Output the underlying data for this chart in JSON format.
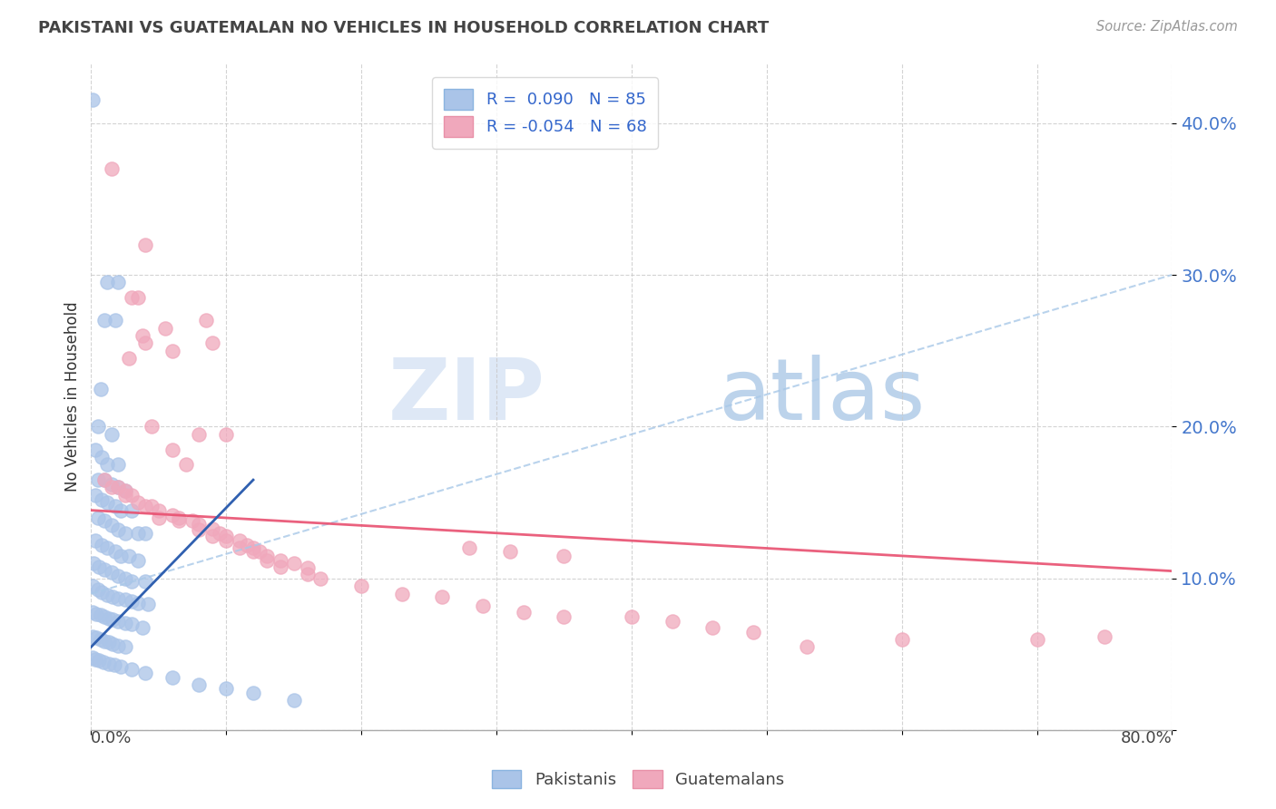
{
  "title": "PAKISTANI VS GUATEMALAN NO VEHICLES IN HOUSEHOLD CORRELATION CHART",
  "source": "Source: ZipAtlas.com",
  "ylabel": "No Vehicles in Household",
  "yticks": [
    0.0,
    0.1,
    0.2,
    0.3,
    0.4
  ],
  "ytick_labels": [
    "",
    "10.0%",
    "20.0%",
    "30.0%",
    "40.0%"
  ],
  "xlim": [
    0.0,
    0.8
  ],
  "ylim": [
    0.0,
    0.44
  ],
  "legend_pakistani_R": "0.090",
  "legend_pakistani_N": "85",
  "legend_guatemalan_R": "-0.054",
  "legend_guatemalan_N": "68",
  "pakistani_color": "#aac4e8",
  "guatemalan_color": "#f0a8bc",
  "pakistani_trend_color": "#3060b0",
  "pakistani_trend_dash_color": "#a8c8e8",
  "guatemalan_trend_color": "#e85070",
  "watermark_zip": "ZIP",
  "watermark_atlas": "atlas",
  "background_color": "#ffffff",
  "pakistani_points": [
    [
      0.001,
      0.415
    ],
    [
      0.012,
      0.295
    ],
    [
      0.02,
      0.295
    ],
    [
      0.01,
      0.27
    ],
    [
      0.018,
      0.27
    ],
    [
      0.007,
      0.225
    ],
    [
      0.005,
      0.2
    ],
    [
      0.015,
      0.195
    ],
    [
      0.003,
      0.185
    ],
    [
      0.008,
      0.18
    ],
    [
      0.012,
      0.175
    ],
    [
      0.02,
      0.175
    ],
    [
      0.005,
      0.165
    ],
    [
      0.01,
      0.165
    ],
    [
      0.015,
      0.162
    ],
    [
      0.02,
      0.16
    ],
    [
      0.025,
      0.158
    ],
    [
      0.003,
      0.155
    ],
    [
      0.008,
      0.152
    ],
    [
      0.012,
      0.15
    ],
    [
      0.018,
      0.148
    ],
    [
      0.022,
      0.145
    ],
    [
      0.03,
      0.145
    ],
    [
      0.005,
      0.14
    ],
    [
      0.01,
      0.138
    ],
    [
      0.015,
      0.135
    ],
    [
      0.02,
      0.132
    ],
    [
      0.025,
      0.13
    ],
    [
      0.035,
      0.13
    ],
    [
      0.04,
      0.13
    ],
    [
      0.003,
      0.125
    ],
    [
      0.008,
      0.122
    ],
    [
      0.012,
      0.12
    ],
    [
      0.018,
      0.118
    ],
    [
      0.022,
      0.115
    ],
    [
      0.028,
      0.115
    ],
    [
      0.035,
      0.112
    ],
    [
      0.002,
      0.11
    ],
    [
      0.006,
      0.108
    ],
    [
      0.01,
      0.106
    ],
    [
      0.015,
      0.104
    ],
    [
      0.02,
      0.102
    ],
    [
      0.025,
      0.1
    ],
    [
      0.03,
      0.098
    ],
    [
      0.04,
      0.098
    ],
    [
      0.001,
      0.095
    ],
    [
      0.005,
      0.093
    ],
    [
      0.008,
      0.091
    ],
    [
      0.012,
      0.089
    ],
    [
      0.016,
      0.088
    ],
    [
      0.02,
      0.087
    ],
    [
      0.025,
      0.086
    ],
    [
      0.03,
      0.085
    ],
    [
      0.035,
      0.084
    ],
    [
      0.042,
      0.083
    ],
    [
      0.001,
      0.078
    ],
    [
      0.004,
      0.077
    ],
    [
      0.007,
      0.076
    ],
    [
      0.01,
      0.075
    ],
    [
      0.013,
      0.074
    ],
    [
      0.016,
      0.073
    ],
    [
      0.02,
      0.072
    ],
    [
      0.025,
      0.071
    ],
    [
      0.03,
      0.07
    ],
    [
      0.038,
      0.068
    ],
    [
      0.001,
      0.062
    ],
    [
      0.004,
      0.061
    ],
    [
      0.007,
      0.06
    ],
    [
      0.01,
      0.059
    ],
    [
      0.013,
      0.058
    ],
    [
      0.016,
      0.057
    ],
    [
      0.02,
      0.056
    ],
    [
      0.025,
      0.055
    ],
    [
      0.001,
      0.048
    ],
    [
      0.003,
      0.047
    ],
    [
      0.006,
      0.046
    ],
    [
      0.009,
      0.045
    ],
    [
      0.013,
      0.044
    ],
    [
      0.017,
      0.043
    ],
    [
      0.022,
      0.042
    ],
    [
      0.03,
      0.04
    ],
    [
      0.04,
      0.038
    ],
    [
      0.06,
      0.035
    ],
    [
      0.08,
      0.03
    ],
    [
      0.1,
      0.028
    ],
    [
      0.12,
      0.025
    ],
    [
      0.15,
      0.02
    ]
  ],
  "guatemalan_points": [
    [
      0.015,
      0.37
    ],
    [
      0.04,
      0.32
    ],
    [
      0.03,
      0.285
    ],
    [
      0.035,
      0.285
    ],
    [
      0.038,
      0.26
    ],
    [
      0.04,
      0.255
    ],
    [
      0.028,
      0.245
    ],
    [
      0.055,
      0.265
    ],
    [
      0.06,
      0.25
    ],
    [
      0.085,
      0.27
    ],
    [
      0.09,
      0.255
    ],
    [
      0.045,
      0.2
    ],
    [
      0.06,
      0.185
    ],
    [
      0.08,
      0.195
    ],
    [
      0.1,
      0.195
    ],
    [
      0.07,
      0.175
    ],
    [
      0.01,
      0.165
    ],
    [
      0.02,
      0.16
    ],
    [
      0.025,
      0.158
    ],
    [
      0.03,
      0.155
    ],
    [
      0.035,
      0.15
    ],
    [
      0.045,
      0.148
    ],
    [
      0.05,
      0.145
    ],
    [
      0.06,
      0.142
    ],
    [
      0.065,
      0.14
    ],
    [
      0.075,
      0.138
    ],
    [
      0.08,
      0.136
    ],
    [
      0.09,
      0.133
    ],
    [
      0.095,
      0.13
    ],
    [
      0.1,
      0.128
    ],
    [
      0.11,
      0.125
    ],
    [
      0.115,
      0.122
    ],
    [
      0.12,
      0.12
    ],
    [
      0.125,
      0.118
    ],
    [
      0.13,
      0.115
    ],
    [
      0.14,
      0.112
    ],
    [
      0.15,
      0.11
    ],
    [
      0.16,
      0.107
    ],
    [
      0.015,
      0.16
    ],
    [
      0.025,
      0.155
    ],
    [
      0.04,
      0.148
    ],
    [
      0.05,
      0.14
    ],
    [
      0.065,
      0.138
    ],
    [
      0.08,
      0.132
    ],
    [
      0.09,
      0.128
    ],
    [
      0.1,
      0.125
    ],
    [
      0.11,
      0.12
    ],
    [
      0.12,
      0.118
    ],
    [
      0.13,
      0.112
    ],
    [
      0.14,
      0.108
    ],
    [
      0.16,
      0.103
    ],
    [
      0.17,
      0.1
    ],
    [
      0.2,
      0.095
    ],
    [
      0.23,
      0.09
    ],
    [
      0.26,
      0.088
    ],
    [
      0.29,
      0.082
    ],
    [
      0.32,
      0.078
    ],
    [
      0.35,
      0.075
    ],
    [
      0.28,
      0.12
    ],
    [
      0.31,
      0.118
    ],
    [
      0.35,
      0.115
    ],
    [
      0.4,
      0.075
    ],
    [
      0.43,
      0.072
    ],
    [
      0.46,
      0.068
    ],
    [
      0.49,
      0.065
    ],
    [
      0.53,
      0.055
    ],
    [
      0.6,
      0.06
    ],
    [
      0.7,
      0.06
    ],
    [
      0.75,
      0.062
    ]
  ]
}
